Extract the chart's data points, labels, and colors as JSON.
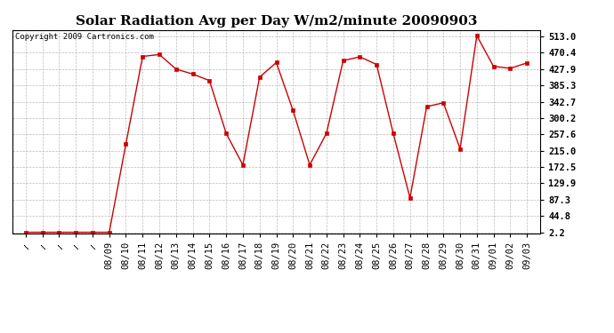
{
  "title": "Solar Radiation Avg per Day W/m2/minute 20090903",
  "copyright": "Copyright 2009 Cartronics.com",
  "x_labels_shown": [
    "08/09",
    "08/10",
    "08/11",
    "08/12",
    "08/13",
    "08/14",
    "08/15",
    "08/16",
    "08/17",
    "08/18",
    "08/19",
    "08/20",
    "08/21",
    "08/22",
    "08/23",
    "08/24",
    "08/25",
    "08/26",
    "08/27",
    "08/28",
    "08/29",
    "08/30",
    "08/31",
    "09/01",
    "09/02",
    "09/03"
  ],
  "n_hidden": 5,
  "values": [
    2.2,
    2.2,
    2.2,
    2.2,
    2.2,
    2.2,
    233.0,
    461.0,
    466.0,
    428.0,
    415.0,
    398.0,
    260.0,
    178.0,
    407.0,
    445.0,
    320.0,
    178.0,
    260.0,
    450.0,
    460.0,
    440.0,
    260.0,
    92.0,
    330.0,
    340.0,
    220.0,
    515.0,
    435.0,
    430.0,
    444.0
  ],
  "yticks": [
    2.2,
    44.8,
    87.3,
    129.9,
    172.5,
    215.0,
    257.6,
    300.2,
    342.7,
    385.3,
    427.9,
    470.4,
    513.0
  ],
  "ylim": [
    0,
    530
  ],
  "line_color": "#cc0000",
  "marker": "s",
  "marker_size": 2.5,
  "background_color": "#ffffff",
  "grid_color": "#aaaaaa",
  "title_fontsize": 11,
  "tick_fontsize": 7.5,
  "copyright_fontsize": 6.5
}
